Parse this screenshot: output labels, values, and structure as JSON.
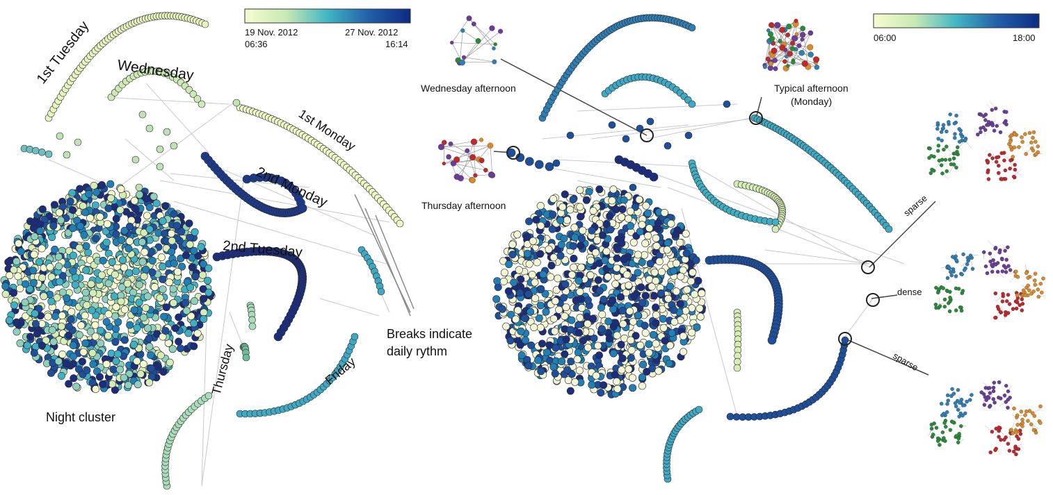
{
  "left_panel": {
    "colorbar": {
      "start_date": "19 Nov. 2012",
      "start_time": "06:36",
      "end_date": "27 Nov. 2012",
      "end_time": "16:14"
    },
    "labels": {
      "first_tuesday": "1st Tuesday",
      "wednesday": "Wednesday",
      "first_monday": "1st Monday",
      "second_monday": "2nd Monday",
      "second_tuesday": "2nd Tuesday",
      "thursday": "Thursday",
      "friday": "Friday",
      "night_cluster": "Night cluster",
      "breaks_line1": "Breaks indicate",
      "breaks_line2": "daily rythm"
    }
  },
  "right_panel": {
    "colorbar": {
      "start_time": "06:00",
      "end_time": "18:00"
    },
    "labels": {
      "wednesday_afternoon": "Wednesday afternoon",
      "thursday_afternoon": "Thursday afternoon",
      "typical_afternoon_line1": "Typical afternoon",
      "typical_afternoon_line2": "(Monday)",
      "sparse_top": "sparse",
      "dense": "dense",
      "sparse_bottom": "sparse"
    }
  },
  "colors": {
    "ramp": [
      "#f7fbd0",
      "#d6edb6",
      "#8fd0bd",
      "#3fb0c4",
      "#1f7fb6",
      "#1d4f9c",
      "#1c2d7c"
    ],
    "community_colors": [
      "#2a8a3a",
      "#2f7fb5",
      "#6a3d9a",
      "#c0282d",
      "#d98a2b"
    ]
  }
}
